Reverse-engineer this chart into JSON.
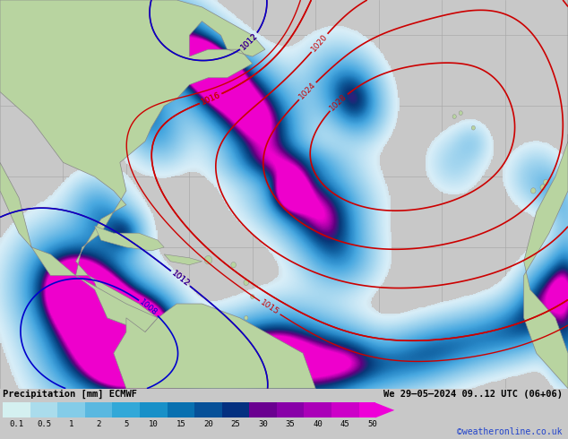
{
  "title_left": "Precipitation [mm] ECMWF",
  "title_right": "We 29–05–2024 09..12 UTC (06+06)",
  "credit": "©weatheronline.co.uk",
  "colorbar_labels": [
    "0.1",
    "0.5",
    "1",
    "2",
    "5",
    "10",
    "15",
    "20",
    "25",
    "30",
    "35",
    "40",
    "45",
    "50"
  ],
  "colorbar_colors": [
    "#d4f0f0",
    "#aadcec",
    "#84cce8",
    "#5ab8e0",
    "#32a8d8",
    "#1890c8",
    "#0870b0",
    "#065098",
    "#043080",
    "#6a0090",
    "#8800a8",
    "#aa00b8",
    "#cc00c8",
    "#ee00d8"
  ],
  "ocean_color": "#c8c8c8",
  "land_color": "#b8d4a0",
  "background_color": "#c8c8c8",
  "grid_color": "#aaaaaa",
  "isobar_color_red": "#cc0000",
  "isobar_color_blue": "#0000cc",
  "precip_light": "#c0e8ff",
  "precip_mid": "#6ab0e0",
  "precip_dark": "#1050a0",
  "fig_width": 6.34,
  "fig_height": 4.9,
  "dpi": 100,
  "lon_min": -100,
  "lon_max": -10,
  "lat_min": 0,
  "lat_max": 55
}
